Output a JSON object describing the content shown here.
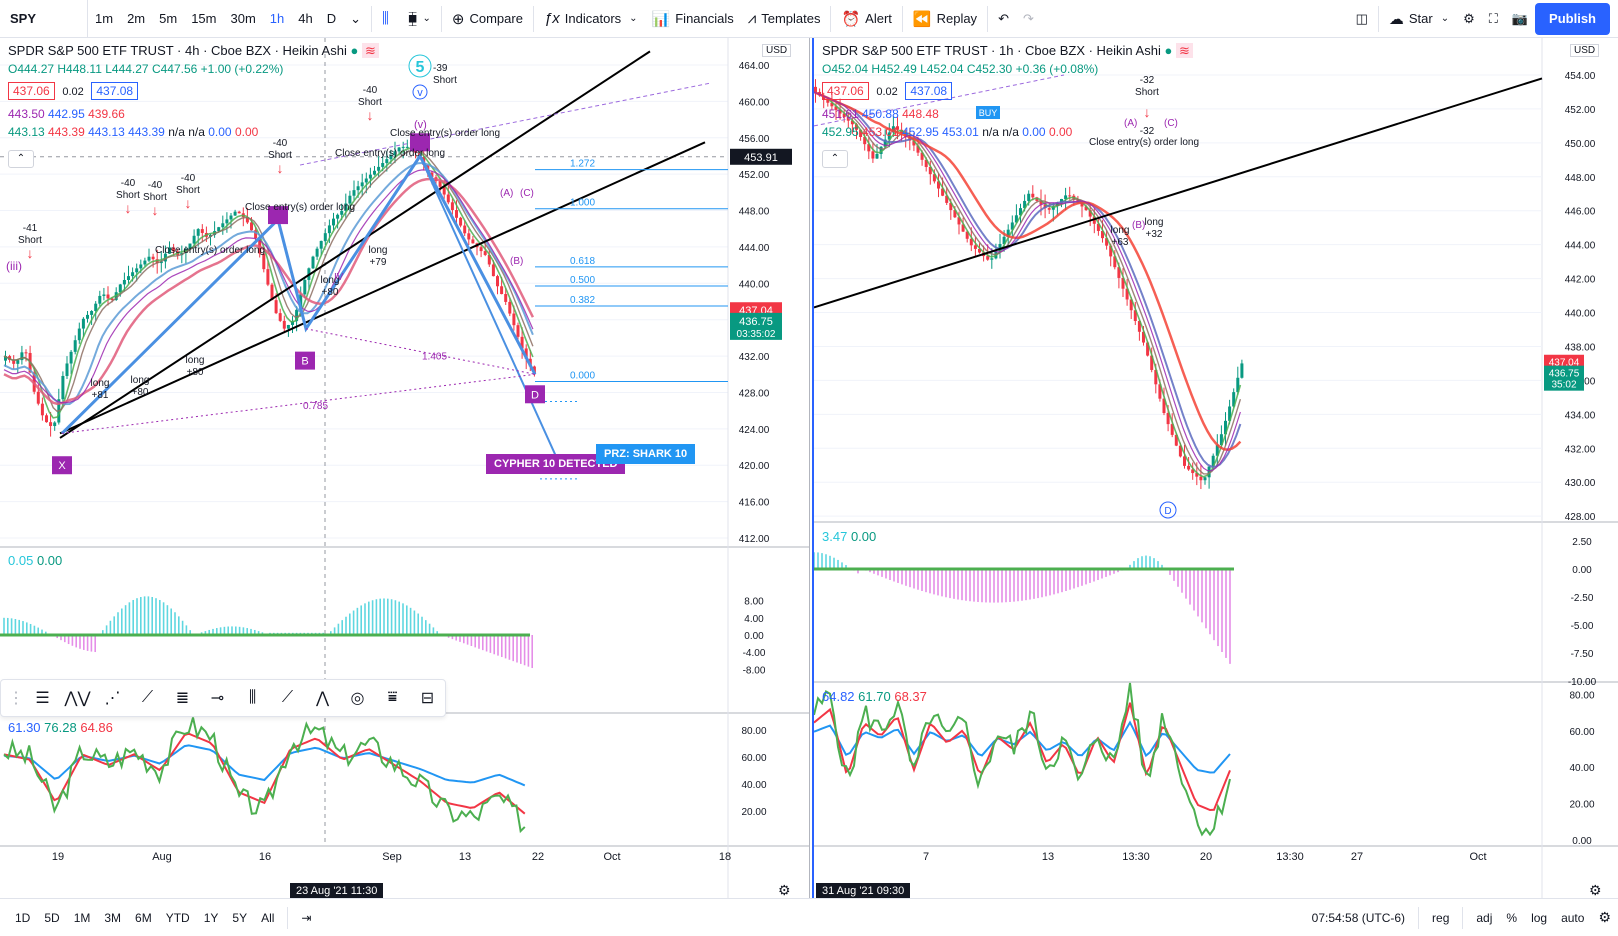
{
  "toolbar": {
    "symbol": "SPY",
    "intervals": [
      "1m",
      "2m",
      "5m",
      "15m",
      "30m",
      "1h",
      "4h",
      "D"
    ],
    "active_interval": "1h",
    "compare": "Compare",
    "indicators": "Indicators",
    "financials": "Financials",
    "templates": "Templates",
    "alert": "Alert",
    "replay": "Replay",
    "star": "Star",
    "publish": "Publish"
  },
  "left": {
    "title": "SPDR S&P 500 ETF TRUST · 4h · Cboe BZX · Heikin Ashi",
    "ohlc": {
      "o": "O444.27",
      "h": "H448.11",
      "l": "L444.27",
      "c": "C447.56",
      "chg": "+1.00 (+0.22%)"
    },
    "sell_price": "437.06",
    "spread": "0.02",
    "buy_price": "437.08",
    "ma_row1": [
      "443.50",
      "442.95",
      "439.66"
    ],
    "ma_row2": [
      "443.13",
      "443.39",
      "443.13",
      "443.39",
      "n/a",
      "n/a",
      "0.00",
      "0.00"
    ],
    "currency": "USD",
    "price_axis": [
      "464.00",
      "460.00",
      "456.00",
      "452.00",
      "448.00",
      "444.00",
      "440.00",
      "436.00",
      "432.00",
      "428.00",
      "424.00",
      "420.00",
      "416.00",
      "412.00"
    ],
    "crosshair_price": "453.91",
    "last_price": "437.04",
    "current_price": "436.75",
    "countdown": "03:35:02",
    "fib_levels": [
      "1.272",
      "1.000",
      "0.618",
      "0.500",
      "0.382",
      "0.000"
    ],
    "pattern_labels": [
      "X",
      "B",
      "D",
      "1.405",
      "0.785"
    ],
    "cypher_badge": "CYPHER 10 DETECTED",
    "prz_badge": "PRZ: SHARK 10",
    "osc_legend": [
      "0.05",
      "0.00"
    ],
    "osc_axis": [
      "8.00",
      "4.00",
      "0.00",
      "-4.00",
      "-8.00"
    ],
    "rsi_legend": [
      "61.30",
      "76.28",
      "64.86"
    ],
    "rsi_axis": [
      "80.00",
      "60.00",
      "40.00",
      "20.00"
    ],
    "time_axis": [
      "19",
      "Aug",
      "16",
      "Sep",
      "13",
      "22",
      "Oct",
      "18"
    ],
    "time_tag": "23 Aug '21   11:30",
    "trade_labels": [
      "-41 Short",
      "-40 Short",
      "-40 Short",
      "-40 Short",
      "-40 Short",
      "-40 Short",
      "long +80",
      "long +81",
      "long +80",
      "long +79",
      "long +80",
      "Close entry(s) order long",
      "-39 Short"
    ],
    "wave_labels": [
      "(iii)",
      "(v)",
      "5",
      "v",
      "(A)",
      "(B)",
      "(C)",
      "IV"
    ]
  },
  "right": {
    "title": "SPDR S&P 500 ETF TRUST · 1h · Cboe BZX · Heikin Ashi",
    "ohlc": {
      "o": "O452.04",
      "h": "H452.49",
      "l": "L452.04",
      "c": "C452.30",
      "chg": "+0.36 (+0.08%)"
    },
    "sell_price": "437.06",
    "spread": "0.02",
    "buy_price": "437.08",
    "ma_row1": [
      "451.61",
      "450.88",
      "448.48"
    ],
    "ma_row2": [
      "452.95",
      "453.01",
      "452.95",
      "453.01",
      "n/a",
      "n/a",
      "0.00",
      "0.00"
    ],
    "currency": "USD",
    "price_axis": [
      "454.00",
      "452.00",
      "450.00",
      "448.00",
      "446.00",
      "444.00",
      "442.00",
      "440.00",
      "438.00",
      "436.00",
      "434.00",
      "432.00",
      "430.00",
      "428.00"
    ],
    "last_price": "437.04",
    "current_price": "436.75",
    "countdown": "35:02",
    "osc_legend": [
      "3.47",
      "0.00"
    ],
    "osc_axis": [
      "2.50",
      "0.00",
      "-2.50",
      "-5.00",
      "-7.50",
      "-10.00"
    ],
    "rsi_legend": [
      "64.82",
      "61.70",
      "68.37"
    ],
    "rsi_axis": [
      "80.00",
      "60.00",
      "40.00",
      "20.00",
      "0.00"
    ],
    "time_axis": [
      "7",
      "13",
      "13:30",
      "20",
      "13:30",
      "27",
      "Oct"
    ],
    "time_tag": "31 Aug '21   09:30",
    "trade_labels": [
      "-32 Short",
      "-32 Short",
      "long +63",
      "long +32",
      "BUY",
      "Close entry(s) order long"
    ],
    "wave_labels": [
      "(A)",
      "(B)",
      "(C)",
      "D"
    ]
  },
  "bottombar": {
    "ranges": [
      "1D",
      "5D",
      "1M",
      "3M",
      "6M",
      "YTD",
      "1Y",
      "5Y",
      "All"
    ],
    "clock": "07:54:58 (UTC-6)",
    "reg": "reg",
    "adj": "adj",
    "percent": "%",
    "log": "log",
    "auto": "auto"
  },
  "colors": {
    "up": "#089981",
    "down": "#f23645",
    "accent": "#2962ff",
    "purple": "#9c27b0",
    "osc_up": "#5fd7e0",
    "osc_down": "#e58ee8"
  }
}
